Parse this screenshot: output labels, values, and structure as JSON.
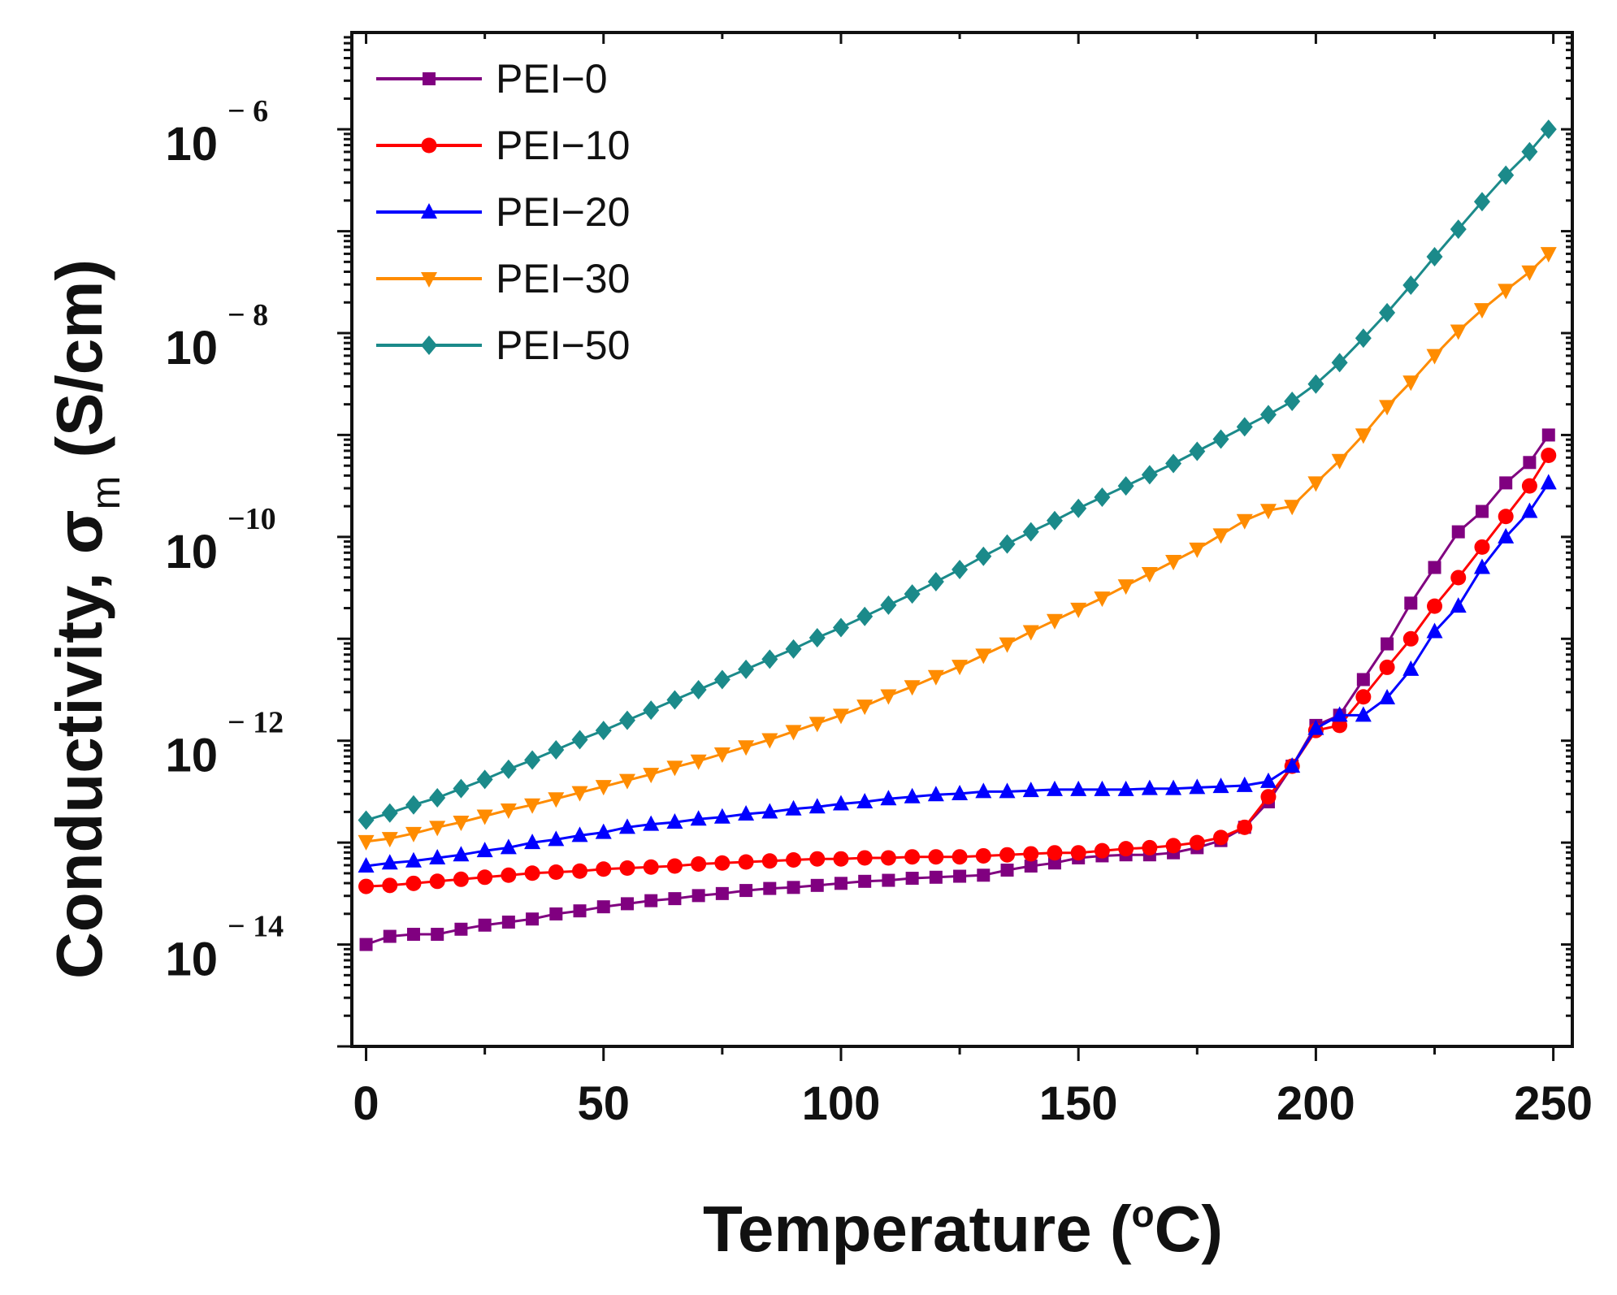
{
  "chart_data": {
    "type": "line",
    "title": "",
    "xlabel": "Temperature (°C)",
    "ylabel": "Conductivity, σm (S/cm)",
    "xlabel_parts": {
      "text": "Temperature (",
      "degree": "o",
      "unit": "C)"
    },
    "ylabel_parts": {
      "text": "Conductivity, σ",
      "subscript": "m",
      "unit": " (S/cm)"
    },
    "xlim": [
      -3,
      254
    ],
    "ylim": [
      -15,
      -5.05
    ],
    "yscale": "log10",
    "x_ticks": [
      "0",
      "50",
      "100",
      "150",
      "200",
      "250"
    ],
    "y_ticks": [
      {
        "base": "10",
        "exp": "− 6"
      },
      {
        "base": "10",
        "exp": "− 8"
      },
      {
        "base": "10",
        "exp": "−10"
      },
      {
        "base": "10",
        "exp": "− 12"
      },
      {
        "base": "10",
        "exp": "− 14"
      }
    ],
    "legend_position": "top-left",
    "grid": false,
    "series": [
      {
        "name": "PEI−0",
        "color": "#800080",
        "marker": "square",
        "x": [
          0,
          5,
          10,
          15,
          20,
          25,
          30,
          35,
          40,
          45,
          50,
          55,
          60,
          65,
          70,
          75,
          80,
          85,
          90,
          95,
          100,
          105,
          110,
          115,
          120,
          125,
          130,
          135,
          140,
          145,
          150,
          155,
          160,
          165,
          170,
          175,
          180,
          185,
          190,
          195,
          200,
          205,
          210,
          215,
          220,
          225,
          230,
          235,
          240,
          245,
          249
        ],
        "y": [
          -14.0,
          -13.92,
          -13.9,
          -13.9,
          -13.85,
          -13.81,
          -13.78,
          -13.75,
          -13.7,
          -13.67,
          -13.63,
          -13.6,
          -13.57,
          -13.55,
          -13.52,
          -13.5,
          -13.47,
          -13.45,
          -13.44,
          -13.42,
          -13.4,
          -13.38,
          -13.37,
          -13.35,
          -13.34,
          -13.33,
          -13.32,
          -13.27,
          -13.23,
          -13.2,
          -13.15,
          -13.13,
          -13.12,
          -13.12,
          -13.1,
          -13.05,
          -12.98,
          -12.85,
          -12.6,
          -12.25,
          -11.85,
          -11.75,
          -11.4,
          -11.05,
          -10.65,
          -10.3,
          -9.95,
          -9.75,
          -9.47,
          -9.27,
          -9.0
        ]
      },
      {
        "name": "PEI−10",
        "color": "#ff0000",
        "marker": "circle",
        "x": [
          0,
          5,
          10,
          15,
          20,
          25,
          30,
          35,
          40,
          45,
          50,
          55,
          60,
          65,
          70,
          75,
          80,
          85,
          90,
          95,
          100,
          105,
          110,
          115,
          120,
          125,
          130,
          135,
          140,
          145,
          150,
          155,
          160,
          165,
          170,
          175,
          180,
          185,
          190,
          195,
          200,
          205,
          210,
          215,
          220,
          225,
          230,
          235,
          240,
          245,
          249
        ],
        "y": [
          -13.43,
          -13.42,
          -13.4,
          -13.38,
          -13.36,
          -13.34,
          -13.32,
          -13.3,
          -13.29,
          -13.28,
          -13.26,
          -13.25,
          -13.24,
          -13.23,
          -13.21,
          -13.2,
          -13.19,
          -13.18,
          -13.17,
          -13.16,
          -13.16,
          -13.15,
          -13.15,
          -13.14,
          -13.14,
          -13.14,
          -13.13,
          -13.12,
          -13.11,
          -13.1,
          -13.1,
          -13.08,
          -13.06,
          -13.05,
          -13.03,
          -13.0,
          -12.95,
          -12.85,
          -12.55,
          -12.25,
          -11.9,
          -11.85,
          -11.57,
          -11.28,
          -11.0,
          -10.68,
          -10.4,
          -10.1,
          -9.8,
          -9.5,
          -9.2
        ]
      },
      {
        "name": "PEI−20",
        "color": "#0000ff",
        "marker": "triangle-up",
        "x": [
          0,
          5,
          10,
          15,
          20,
          25,
          30,
          35,
          40,
          45,
          50,
          55,
          60,
          65,
          70,
          75,
          80,
          85,
          90,
          95,
          100,
          105,
          110,
          115,
          120,
          125,
          130,
          135,
          140,
          145,
          150,
          155,
          160,
          165,
          170,
          175,
          180,
          185,
          190,
          195,
          200,
          205,
          210,
          215,
          220,
          225,
          230,
          235,
          240,
          245,
          249
        ],
        "y": [
          -13.23,
          -13.2,
          -13.18,
          -13.15,
          -13.12,
          -13.08,
          -13.05,
          -13.0,
          -12.97,
          -12.93,
          -12.9,
          -12.85,
          -12.82,
          -12.8,
          -12.77,
          -12.75,
          -12.72,
          -12.7,
          -12.67,
          -12.65,
          -12.62,
          -12.6,
          -12.57,
          -12.55,
          -12.53,
          -12.52,
          -12.5,
          -12.5,
          -12.49,
          -12.48,
          -12.48,
          -12.48,
          -12.48,
          -12.47,
          -12.47,
          -12.46,
          -12.45,
          -12.44,
          -12.4,
          -12.25,
          -11.88,
          -11.75,
          -11.75,
          -11.58,
          -11.3,
          -10.93,
          -10.68,
          -10.3,
          -10.0,
          -9.75,
          -9.47
        ]
      },
      {
        "name": "PEI−30",
        "color": "#ff8c00",
        "marker": "triangle-down",
        "x": [
          0,
          5,
          10,
          15,
          20,
          25,
          30,
          35,
          40,
          45,
          50,
          55,
          60,
          65,
          70,
          75,
          80,
          85,
          90,
          95,
          100,
          105,
          110,
          115,
          120,
          125,
          130,
          135,
          140,
          145,
          150,
          155,
          160,
          165,
          170,
          175,
          180,
          185,
          190,
          195,
          200,
          205,
          210,
          215,
          220,
          225,
          230,
          235,
          240,
          245,
          249
        ],
        "y": [
          -12.99,
          -12.96,
          -12.91,
          -12.85,
          -12.8,
          -12.74,
          -12.68,
          -12.63,
          -12.57,
          -12.51,
          -12.45,
          -12.39,
          -12.33,
          -12.26,
          -12.2,
          -12.13,
          -12.06,
          -11.99,
          -11.91,
          -11.83,
          -11.75,
          -11.66,
          -11.56,
          -11.47,
          -11.37,
          -11.27,
          -11.16,
          -11.05,
          -10.93,
          -10.82,
          -10.71,
          -10.6,
          -10.48,
          -10.36,
          -10.24,
          -10.12,
          -9.98,
          -9.84,
          -9.74,
          -9.7,
          -9.47,
          -9.25,
          -9.0,
          -8.72,
          -8.48,
          -8.22,
          -7.98,
          -7.77,
          -7.58,
          -7.4,
          -7.22
        ]
      },
      {
        "name": "PEI−50",
        "color": "#1b8a8a",
        "marker": "diamond",
        "x": [
          0,
          5,
          10,
          15,
          20,
          25,
          30,
          35,
          40,
          45,
          50,
          55,
          60,
          65,
          70,
          75,
          80,
          85,
          90,
          95,
          100,
          105,
          110,
          115,
          120,
          125,
          130,
          135,
          140,
          145,
          150,
          155,
          160,
          165,
          170,
          175,
          180,
          185,
          190,
          195,
          200,
          205,
          210,
          215,
          220,
          225,
          230,
          235,
          240,
          245,
          249
        ],
        "y": [
          -12.78,
          -12.71,
          -12.63,
          -12.56,
          -12.47,
          -12.38,
          -12.28,
          -12.19,
          -12.09,
          -11.99,
          -11.9,
          -11.8,
          -11.7,
          -11.6,
          -11.5,
          -11.4,
          -11.3,
          -11.2,
          -11.1,
          -10.99,
          -10.89,
          -10.78,
          -10.67,
          -10.56,
          -10.44,
          -10.32,
          -10.19,
          -10.07,
          -9.95,
          -9.84,
          -9.72,
          -9.61,
          -9.5,
          -9.39,
          -9.28,
          -9.16,
          -9.04,
          -8.92,
          -8.8,
          -8.67,
          -8.5,
          -8.29,
          -8.05,
          -7.8,
          -7.53,
          -7.25,
          -6.98,
          -6.71,
          -6.45,
          -6.22,
          -6.0
        ]
      }
    ]
  }
}
